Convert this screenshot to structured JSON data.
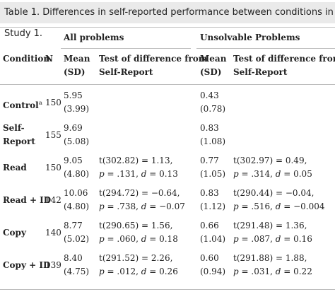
{
  "caption": {
    "label": "Table 1.",
    "text": "Differences in self-reported performance between conditions in Study 1."
  },
  "headers": {
    "group_all": "All problems",
    "group_unsolv": "Unsolvable Problems",
    "condition": "Condition",
    "n": "N",
    "mean_all": "Mean",
    "sd_all": "(SD)",
    "test_all_line1": "Test of difference from",
    "test_all_line2": "Self-Report",
    "mean_un": "Mean",
    "sd_un": "(SD)",
    "test_un_line1": "Test of difference from",
    "test_un_line2": "Self-Report"
  },
  "rows": [
    {
      "condition": [
        "Control",
        ""
      ],
      "footnote": "a",
      "n": "150",
      "all_mean": "5.95",
      "all_sd": "(3.99)",
      "all_t": "",
      "all_p": "",
      "un_mean": "0.43",
      "un_sd": "(0.78)",
      "un_t": "",
      "un_p": ""
    },
    {
      "condition": [
        "Self-",
        "Report"
      ],
      "footnote": "",
      "n": "155",
      "all_mean": "9.69",
      "all_sd": "(5.08)",
      "all_t": "",
      "all_p": "",
      "un_mean": "0.83",
      "un_sd": "(1.08)",
      "un_t": "",
      "un_p": ""
    },
    {
      "condition": [
        "Read",
        ""
      ],
      "footnote": "",
      "n": "150",
      "all_mean": "9.05",
      "all_sd": "(4.80)",
      "all_t": "t(302.82) = 1.13,",
      "all_p": ".131",
      "all_d": "0.13",
      "un_mean": "0.77",
      "un_sd": "(1.05)",
      "un_t": "t(302.97) = 0.49,",
      "un_p": ".314",
      "un_d": "0.05"
    },
    {
      "condition": [
        "Read + ID",
        ""
      ],
      "footnote": "",
      "n": "142",
      "all_mean": "10.06",
      "all_sd": "(4.80)",
      "all_t": "t(294.72) = −0.64,",
      "all_p": ".738",
      "all_d": "−0.07",
      "un_mean": "0.83",
      "un_sd": "(1.12)",
      "un_t": "t(290.44) = −0.04,",
      "un_p": ".516",
      "un_d": "−0.004"
    },
    {
      "condition": [
        "Copy",
        ""
      ],
      "footnote": "",
      "n": "140",
      "all_mean": "8.77",
      "all_sd": "(5.02)",
      "all_t": "t(290.65) = 1.56,",
      "all_p": ".060",
      "all_d": "0.18",
      "un_mean": "0.66",
      "un_sd": "(1.04)",
      "un_t": "t(291.48) = 1.36,",
      "un_p": ".087",
      "un_d": "0.16"
    },
    {
      "condition": [
        "Copy + ID",
        ""
      ],
      "footnote": "",
      "n": "139",
      "all_mean": "8.40",
      "all_sd": "(4.75)",
      "all_t": "t(291.52) = 2.26,",
      "all_p": ".012",
      "all_d": "0.26",
      "un_mean": "0.60",
      "un_sd": "(0.94)",
      "un_t": "t(291.88) = 1.88,",
      "un_p": ".031",
      "un_d": "0.22"
    }
  ],
  "labels": {
    "p_prefix": "p",
    "d_prefix": "d"
  }
}
